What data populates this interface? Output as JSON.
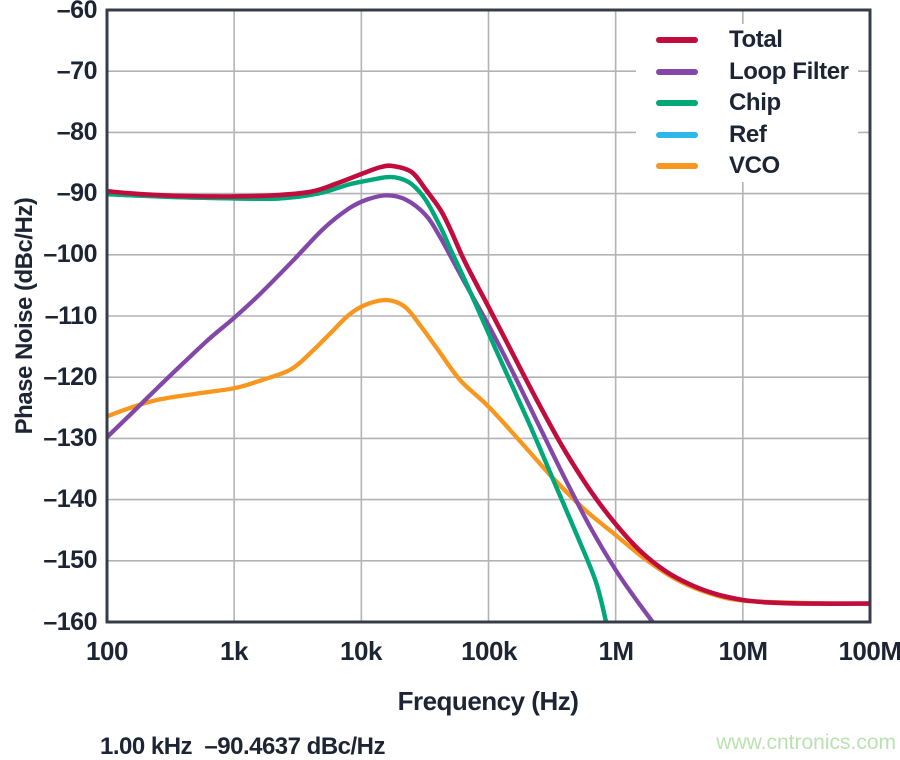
{
  "chart_data": {
    "type": "line",
    "title": "",
    "xlabel": "Frequency (Hz)",
    "ylabel": "Phase Noise (dBc/Hz)",
    "x_scale": "log",
    "xlim": [
      100,
      100000000
    ],
    "ylim": [
      -160,
      -60
    ],
    "grid": true,
    "legend_position": "top-right-inside",
    "x_ticks": [
      {
        "value": 100,
        "label": "100"
      },
      {
        "value": 1000,
        "label": "1k"
      },
      {
        "value": 10000,
        "label": "10k"
      },
      {
        "value": 100000,
        "label": "100k"
      },
      {
        "value": 1000000,
        "label": "1M"
      },
      {
        "value": 10000000,
        "label": "10M"
      },
      {
        "value": 100000000,
        "label": "100M"
      }
    ],
    "y_ticks": [
      {
        "value": -60,
        "label": "–60"
      },
      {
        "value": -70,
        "label": "–70"
      },
      {
        "value": -80,
        "label": "–80"
      },
      {
        "value": -90,
        "label": "–90"
      },
      {
        "value": -100,
        "label": "–100"
      },
      {
        "value": -110,
        "label": "–110"
      },
      {
        "value": -120,
        "label": "–120"
      },
      {
        "value": -130,
        "label": "–130"
      },
      {
        "value": -140,
        "label": "–140"
      },
      {
        "value": -150,
        "label": "–150"
      },
      {
        "value": -160,
        "label": "–160"
      }
    ],
    "series": [
      {
        "name": "Total",
        "color": "#c00d3e",
        "points": [
          [
            100,
            -89.6
          ],
          [
            160,
            -90.0
          ],
          [
            320,
            -90.35
          ],
          [
            630,
            -90.45
          ],
          [
            1000,
            -90.46
          ],
          [
            2000,
            -90.3
          ],
          [
            4000,
            -89.7
          ],
          [
            6300,
            -88.4
          ],
          [
            10000,
            -86.8
          ],
          [
            14000,
            -85.7
          ],
          [
            17800,
            -85.5
          ],
          [
            25000,
            -86.5
          ],
          [
            32000,
            -89.3
          ],
          [
            42000,
            -92.7
          ],
          [
            50000,
            -95.8
          ],
          [
            63000,
            -100.5
          ],
          [
            79000,
            -104.5
          ],
          [
            100000,
            -108.5
          ],
          [
            158000,
            -116.5
          ],
          [
            251000,
            -124.5
          ],
          [
            398000,
            -132.0
          ],
          [
            631000,
            -138.5
          ],
          [
            1000000,
            -144.0
          ],
          [
            1580000,
            -148.5
          ],
          [
            2510000,
            -151.8
          ],
          [
            3980000,
            -154.0
          ],
          [
            6310000,
            -155.5
          ],
          [
            10000000,
            -156.4
          ],
          [
            15800000,
            -156.8
          ],
          [
            31600000,
            -157.0
          ],
          [
            100000000,
            -157.0
          ]
        ]
      },
      {
        "name": "Loop Filter",
        "color": "#8347a8",
        "points": [
          [
            100,
            -129.8
          ],
          [
            158,
            -125.8
          ],
          [
            251,
            -121.7
          ],
          [
            398,
            -117.7
          ],
          [
            631,
            -113.8
          ],
          [
            1000,
            -110.3
          ],
          [
            1580,
            -106.5
          ],
          [
            2950,
            -100.8
          ],
          [
            5000,
            -95.8
          ],
          [
            7900,
            -92.5
          ],
          [
            11000,
            -91.0
          ],
          [
            15800,
            -90.3
          ],
          [
            22400,
            -91.0
          ],
          [
            32000,
            -93.5
          ],
          [
            41600,
            -97.1
          ],
          [
            63000,
            -104.0
          ],
          [
            100000,
            -111.5
          ],
          [
            158000,
            -119.5
          ],
          [
            251000,
            -128.0
          ],
          [
            398000,
            -136.5
          ],
          [
            631000,
            -144.5
          ],
          [
            1000000,
            -151.5
          ],
          [
            1410000,
            -156.0
          ],
          [
            2040000,
            -160.5
          ]
        ]
      },
      {
        "name": "Chip",
        "color": "#00a878",
        "points": [
          [
            100,
            -90.1
          ],
          [
            320,
            -90.55
          ],
          [
            1000,
            -90.8
          ],
          [
            2000,
            -90.85
          ],
          [
            3200,
            -90.5
          ],
          [
            5000,
            -89.8
          ],
          [
            8000,
            -88.5
          ],
          [
            11000,
            -87.9
          ],
          [
            16000,
            -87.3
          ],
          [
            20000,
            -87.5
          ],
          [
            25000,
            -88.5
          ],
          [
            32000,
            -91.0
          ],
          [
            42000,
            -95.5
          ],
          [
            50000,
            -99.0
          ],
          [
            63000,
            -103.5
          ],
          [
            79000,
            -108.0
          ],
          [
            100000,
            -112.8
          ],
          [
            158000,
            -122.0
          ],
          [
            224000,
            -129.0
          ],
          [
            316000,
            -136.3
          ],
          [
            500000,
            -146.0
          ],
          [
            700000,
            -153.5
          ],
          [
            851000,
            -160.5
          ]
        ]
      },
      {
        "name": "Ref",
        "color": "#2eb8ea",
        "points": [
          [
            100,
            -90.1
          ],
          [
            320,
            -90.55
          ],
          [
            1000,
            -90.8
          ],
          [
            2000,
            -90.85
          ],
          [
            3200,
            -90.5
          ],
          [
            5000,
            -89.8
          ],
          [
            8000,
            -88.5
          ],
          [
            11000,
            -87.9
          ],
          [
            16000,
            -87.3
          ],
          [
            20000,
            -87.5
          ],
          [
            25000,
            -88.5
          ],
          [
            32000,
            -91.0
          ],
          [
            42000,
            -95.5
          ],
          [
            50000,
            -99.0
          ],
          [
            63000,
            -103.5
          ],
          [
            79000,
            -108.0
          ],
          [
            100000,
            -112.8
          ],
          [
            158000,
            -122.0
          ],
          [
            224000,
            -129.0
          ],
          [
            316000,
            -136.3
          ],
          [
            500000,
            -146.0
          ],
          [
            700000,
            -153.5
          ],
          [
            851000,
            -160.5
          ]
        ]
      },
      {
        "name": "VCO",
        "color": "#f8961e",
        "points": [
          [
            100,
            -126.4
          ],
          [
            158,
            -124.9
          ],
          [
            251,
            -123.7
          ],
          [
            500,
            -122.7
          ],
          [
            1000,
            -121.8
          ],
          [
            1580,
            -120.6
          ],
          [
            2750,
            -118.8
          ],
          [
            4000,
            -116.0
          ],
          [
            5600,
            -113.0
          ],
          [
            8000,
            -109.8
          ],
          [
            11000,
            -108.1
          ],
          [
            16000,
            -107.4
          ],
          [
            22000,
            -108.5
          ],
          [
            29000,
            -111.5
          ],
          [
            40000,
            -115.5
          ],
          [
            60000,
            -120.5
          ],
          [
            100000,
            -124.8
          ],
          [
            178000,
            -130.5
          ],
          [
            316000,
            -136.3
          ],
          [
            562000,
            -141.5
          ],
          [
            1000000,
            -145.8
          ],
          [
            1780000,
            -150.0
          ],
          [
            3160000,
            -153.3
          ],
          [
            5620000,
            -155.4
          ],
          [
            10000000,
            -156.5
          ],
          [
            31600000,
            -156.9
          ],
          [
            100000000,
            -157.0
          ]
        ]
      }
    ],
    "draw_order": [
      3,
      4,
      1,
      2,
      0
    ],
    "marker_readout": "1.00 kHz  –90.4637 dBc/Hz",
    "colors": {
      "grid": "#b2b3b7",
      "axis_border": "#373c49",
      "text": "#1d2433"
    }
  },
  "watermark": {
    "text": "www.cntronics.com",
    "color": "#b9e2b1"
  }
}
